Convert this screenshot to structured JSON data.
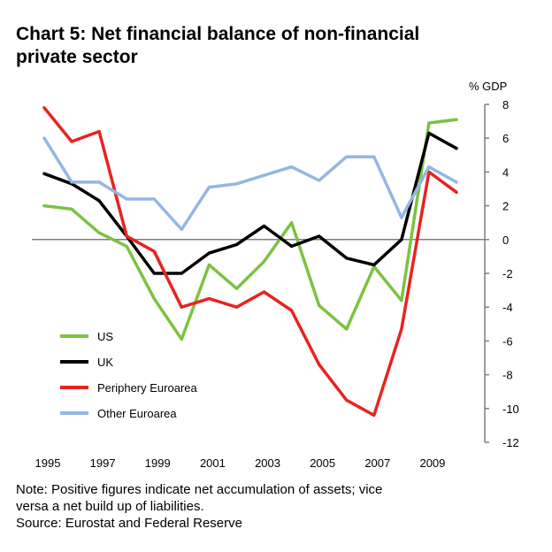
{
  "title_line1": "Chart 5: Net financial balance of non-financial",
  "title_line2": "private sector",
  "notes": {
    "note_line1": "Note: Positive figures indicate net accumulation of assets; vice",
    "note_line2": "versa a net build up of liabilities.",
    "source": "Source: Eurostat and Federal Reserve"
  },
  "chart_data": {
    "type": "line",
    "title": "Chart 5: Net financial balance of non-financial private sector",
    "ylabel": "% GDP",
    "xlabel": "",
    "ylim": [
      -12,
      8
    ],
    "yticks": [
      8,
      6,
      4,
      2,
      0,
      -2,
      -4,
      -6,
      -8,
      -10,
      -12
    ],
    "xticks": [
      1995,
      1997,
      1999,
      2001,
      2003,
      2005,
      2007,
      2009
    ],
    "x": [
      1995,
      1996,
      1997,
      1998,
      1999,
      2000,
      2001,
      2002,
      2003,
      2004,
      2005,
      2006,
      2007,
      2008,
      2009,
      2010
    ],
    "legend_position": "lower-left",
    "series": [
      {
        "name": "US",
        "color": "#7dc242",
        "values": [
          2.0,
          1.8,
          0.4,
          -0.4,
          -3.5,
          -5.9,
          -1.5,
          -2.9,
          -1.3,
          1.0,
          -3.9,
          -5.3,
          -1.6,
          -3.6,
          6.9,
          7.1
        ]
      },
      {
        "name": "UK",
        "color": "#000000",
        "values": [
          3.9,
          3.3,
          2.3,
          0.2,
          -2.0,
          -2.0,
          -0.8,
          -0.3,
          0.8,
          -0.4,
          0.2,
          -1.1,
          -1.5,
          0.0,
          6.3,
          5.4
        ]
      },
      {
        "name": "Periphery Euroarea",
        "color": "#e8231f",
        "values": [
          7.8,
          5.8,
          6.4,
          0.2,
          -0.7,
          -4.0,
          -3.5,
          -4.0,
          -3.1,
          -4.2,
          -7.4,
          -9.5,
          -10.4,
          -5.3,
          4.0,
          2.8
        ]
      },
      {
        "name": "Other Euroarea",
        "color": "#93b7e3",
        "values": [
          6.0,
          3.4,
          3.4,
          2.4,
          2.4,
          0.6,
          3.1,
          3.3,
          3.8,
          4.3,
          3.5,
          4.9,
          4.9,
          1.3,
          4.3,
          3.4
        ]
      }
    ]
  }
}
